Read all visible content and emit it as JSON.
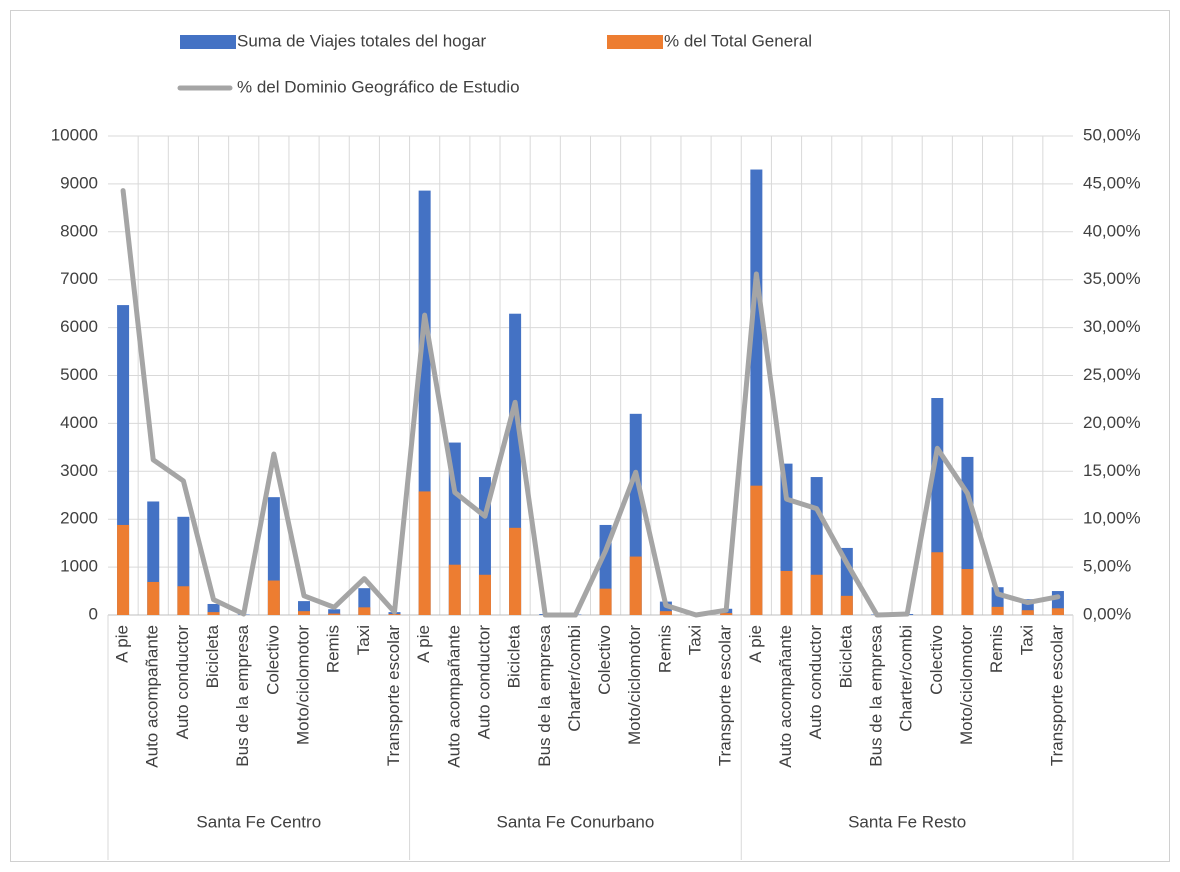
{
  "chart_data": {
    "type": "bar",
    "groups": [
      {
        "name": "Santa Fe Centro",
        "categories": [
          "A pie",
          "Auto acompañante",
          "Auto conductor",
          "Bicicleta",
          "Bus de la empresa",
          "Colectivo",
          "Moto/ciclomotor",
          "Remis",
          "Taxi",
          "Transporte escolar"
        ]
      },
      {
        "name": "Santa Fe Conurbano",
        "categories": [
          "A pie",
          "Auto acompañante",
          "Auto conductor",
          "Bicicleta",
          "Bus de la empresa",
          "Charter/combi",
          "Colectivo",
          "Moto/ciclomotor",
          "Remis",
          "Taxi",
          "Transporte escolar"
        ]
      },
      {
        "name": "Santa Fe Resto",
        "categories": [
          "A pie",
          "Auto acompañante",
          "Auto conductor",
          "Bicicleta",
          "Bus de la empresa",
          "Charter/combi",
          "Colectivo",
          "Moto/ciclomotor",
          "Remis",
          "Taxi",
          "Transporte escolar"
        ]
      }
    ],
    "series": [
      {
        "name": "Suma de Viajes totales del hogar",
        "type": "bar",
        "color": "#4472c4",
        "axis": "y",
        "values": [
          6470,
          2370,
          2050,
          230,
          10,
          2460,
          290,
          120,
          560,
          60,
          8860,
          3600,
          2880,
          6290,
          20,
          10,
          1880,
          4200,
          280,
          20,
          130,
          9300,
          3160,
          2880,
          1400,
          10,
          20,
          4530,
          3300,
          580,
          330,
          500
        ]
      },
      {
        "name": "% del Total General",
        "type": "bar",
        "color": "#ed7d31",
        "axis": "y2",
        "values": [
          9.4,
          3.45,
          3.0,
          0.3,
          0,
          3.6,
          0.4,
          0.15,
          0.8,
          0.1,
          12.9,
          5.25,
          4.2,
          9.1,
          0,
          0,
          2.75,
          6.1,
          0.4,
          0,
          0.2,
          13.5,
          4.6,
          4.2,
          2.0,
          0,
          0,
          6.55,
          4.8,
          0.85,
          0.5,
          0.7
        ]
      },
      {
        "name": "% del Dominio Geográfico de Estudio",
        "type": "line",
        "color": "#a5a5a5",
        "axis": "y2",
        "values": [
          44.3,
          16.2,
          14.0,
          1.6,
          0.1,
          16.8,
          2.0,
          0.8,
          3.8,
          0.3,
          31.3,
          12.8,
          10.3,
          22.2,
          0.0,
          0.0,
          6.7,
          14.9,
          1.0,
          0.0,
          0.5,
          35.6,
          12.1,
          11.1,
          5.4,
          0.0,
          0.1,
          17.4,
          12.7,
          2.2,
          1.3,
          1.9
        ]
      }
    ],
    "ylim": [
      0,
      10000
    ],
    "yticks": [
      0,
      1000,
      2000,
      3000,
      4000,
      5000,
      6000,
      7000,
      8000,
      9000,
      10000
    ],
    "y2lim": [
      0,
      50
    ],
    "y2ticks": [
      {
        "value": 0,
        "label": "0,00%"
      },
      {
        "value": 5,
        "label": "5,00%"
      },
      {
        "value": 10,
        "label": "10,00%"
      },
      {
        "value": 15,
        "label": "15,00%"
      },
      {
        "value": 20,
        "label": "20,00%"
      },
      {
        "value": 25,
        "label": "25,00%"
      },
      {
        "value": 30,
        "label": "30,00%"
      },
      {
        "value": 35,
        "label": "35,00%"
      },
      {
        "value": 40,
        "label": "40,00%"
      },
      {
        "value": 45,
        "label": "45,00%"
      },
      {
        "value": 50,
        "label": "50,00%"
      }
    ],
    "grid": true,
    "legend": "top"
  }
}
